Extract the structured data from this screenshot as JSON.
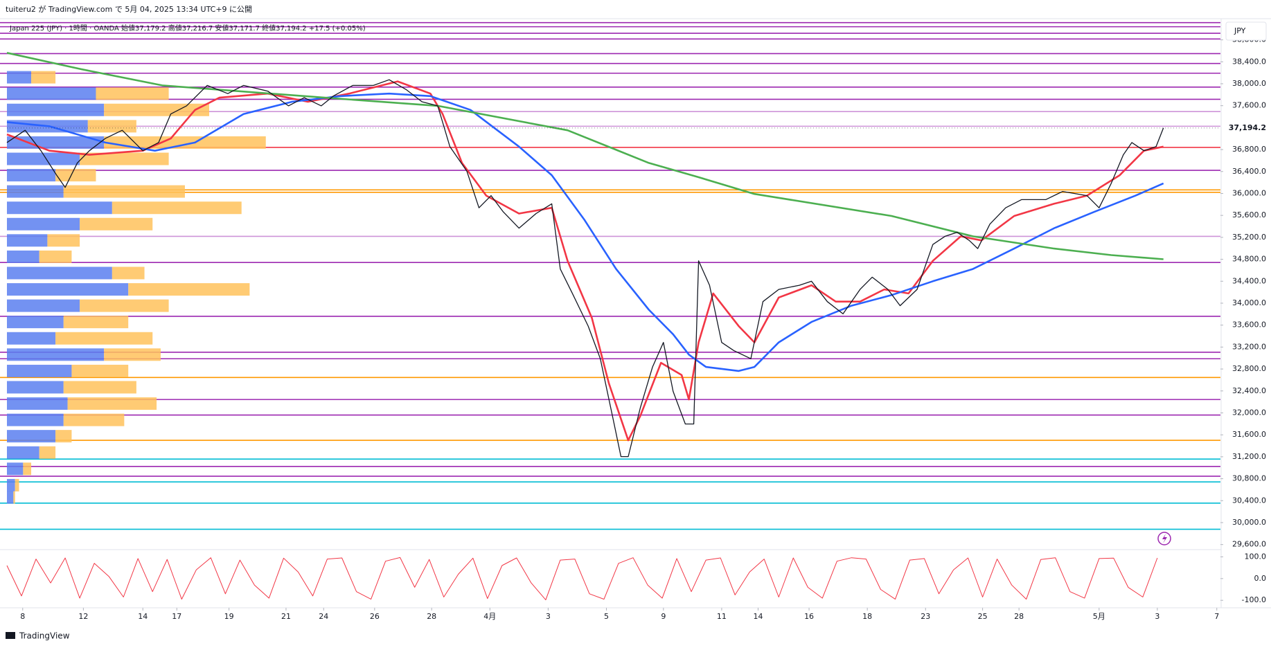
{
  "header": {
    "publisher": "tuiteru2 が TradingView.com で 5月 04, 2025 13:34 UTC+9 に公開",
    "legend": "Japan 225 (JPY) · 1時間 · OANDA  始値37,179.2  高値37,216.7  安値37,171.7  終値37,194.2  +17.5 (+0.05%)"
  },
  "footer": {
    "brand": "TradingView"
  },
  "chart_data": [
    {
      "type": "line",
      "currency": "JPY",
      "xlim": [
        0,
        1000
      ],
      "ylim": [
        29520,
        39110
      ],
      "xticks": [
        {
          "value": 13,
          "label": "8"
        },
        {
          "value": 63,
          "label": "12"
        },
        {
          "value": 112,
          "label": "14"
        },
        {
          "value": 140,
          "label": "17"
        },
        {
          "value": 183,
          "label": "19"
        },
        {
          "value": 230,
          "label": "21"
        },
        {
          "value": 261,
          "label": "24"
        },
        {
          "value": 303,
          "label": "26"
        },
        {
          "value": 350,
          "label": "28"
        },
        {
          "value": 398,
          "label": "4月"
        },
        {
          "value": 446,
          "label": "3"
        },
        {
          "value": 494,
          "label": "5"
        },
        {
          "value": 541,
          "label": "9"
        },
        {
          "value": 589,
          "label": "11"
        },
        {
          "value": 619,
          "label": "14"
        },
        {
          "value": 661,
          "label": "16"
        },
        {
          "value": 709,
          "label": "18"
        },
        {
          "value": 757,
          "label": "23"
        },
        {
          "value": 804,
          "label": "25"
        },
        {
          "value": 834,
          "label": "28"
        },
        {
          "value": 900,
          "label": "5月"
        },
        {
          "value": 948,
          "label": "3"
        },
        {
          "value": 997,
          "label": "7"
        }
      ],
      "yticks": [
        {
          "value": 29600,
          "label": "29,600.0"
        },
        {
          "value": 30000,
          "label": "30,000.0"
        },
        {
          "value": 30400,
          "label": "30,400.0"
        },
        {
          "value": 30800,
          "label": "30,800.0"
        },
        {
          "value": 31200,
          "label": "31,200.0"
        },
        {
          "value": 31600,
          "label": "31,600.0"
        },
        {
          "value": 32000,
          "label": "32,000.0"
        },
        {
          "value": 32400,
          "label": "32,400.0"
        },
        {
          "value": 32800,
          "label": "32,800.0"
        },
        {
          "value": 33200,
          "label": "33,200.0"
        },
        {
          "value": 33600,
          "label": "33,600.0"
        },
        {
          "value": 34000,
          "label": "34,000.0"
        },
        {
          "value": 34400,
          "label": "34,400.0"
        },
        {
          "value": 34800,
          "label": "34,800.0"
        },
        {
          "value": 35200,
          "label": "35,200.0"
        },
        {
          "value": 35600,
          "label": "35,600.0"
        },
        {
          "value": 36000,
          "label": "36,000.0"
        },
        {
          "value": 36400,
          "label": "36,400.0"
        },
        {
          "value": 36800,
          "label": "36,800.0"
        },
        {
          "value": 37600,
          "label": "37,600.0"
        },
        {
          "value": 38000,
          "label": "38,000.0"
        },
        {
          "value": 38400,
          "label": "38,400.0"
        },
        {
          "value": 38800,
          "label": "38,800.0"
        }
      ],
      "last_price": {
        "value": 37194.2,
        "label": "37,194.2"
      },
      "hlines": {
        "values": [
          39114,
          39039,
          38920,
          38816,
          38549,
          38370,
          38192,
          37939,
          37716,
          37493,
          37225,
          36839,
          36422,
          36065,
          36021,
          35218,
          34742,
          33761,
          33106,
          32987,
          32645,
          32244,
          31961,
          31500,
          31158,
          31024,
          30846,
          30742,
          30355,
          29879
        ],
        "colors": [
          "#9c27b0",
          "#9c27b0",
          "#9c27b0",
          "#9c27b0",
          "#9c27b0",
          "#9c27b0",
          "#9c27b0",
          "#9c27b0",
          "#9c27b0",
          "#ce93d8",
          "#ce93d8",
          "#f23645",
          "#9c27b0",
          "#ff9800",
          "#ff9800",
          "#ce93d8",
          "#9c27b0",
          "#9c27b0",
          "#9c27b0",
          "#9c27b0",
          "#ff9800",
          "#9c27b0",
          "#9c27b0",
          "#ff9800",
          "#00bcd4",
          "#9c27b0",
          "#9c27b0",
          "#00bcd4",
          "#00bcd4",
          "#00bcd4"
        ]
      },
      "volume_profile": {
        "xlim": [
          0,
          1500
        ],
        "colors": [
          "#5b7ff0",
          "#ffc25c"
        ],
        "levels": [
          38118,
          37820,
          37523,
          37225,
          36928,
          36630,
          36333,
          36036,
          35738,
          35441,
          35144,
          34846,
          34549,
          34251,
          33954,
          33657,
          33359,
          33062,
          32764,
          32467,
          32170,
          31872,
          31575,
          31277,
          30980,
          30682,
          30459
        ],
        "up": [
          30,
          110,
          120,
          100,
          120,
          90,
          60,
          70,
          130,
          90,
          50,
          40,
          130,
          150,
          90,
          70,
          60,
          120,
          80,
          70,
          75,
          70,
          60,
          40,
          20,
          10,
          8
        ],
        "down": [
          30,
          90,
          130,
          60,
          200,
          110,
          50,
          150,
          160,
          90,
          40,
          40,
          40,
          150,
          110,
          80,
          120,
          70,
          70,
          90,
          110,
          75,
          20,
          20,
          10,
          5,
          2
        ]
      },
      "series": [
        {
          "color": "#131722",
          "x": [
            0,
            15,
            28,
            41,
            48,
            58,
            68,
            81,
            95,
            112,
            125,
            135,
            148,
            165,
            182,
            195,
            215,
            232,
            245,
            259,
            269,
            285,
            302,
            315,
            329,
            342,
            355,
            365,
            379,
            389,
            399,
            409,
            422,
            436,
            449,
            456,
            466,
            479,
            489,
            499,
            506,
            512,
            522,
            532,
            541,
            549,
            559,
            566,
            570,
            579,
            589,
            599,
            613,
            623,
            636,
            653,
            663,
            676,
            689,
            703,
            713,
            726,
            736,
            750,
            763,
            773,
            783,
            793,
            800,
            810,
            823,
            836,
            856,
            870,
            890,
            900,
            910,
            920,
            927,
            937,
            947,
            953
          ],
          "values": [
            36928,
            37151,
            36779,
            36333,
            36110,
            36556,
            36779,
            37002,
            37151,
            36779,
            36928,
            37448,
            37597,
            37969,
            37820,
            37969,
            37865,
            37597,
            37746,
            37597,
            37776,
            37969,
            37969,
            38073,
            37894,
            37671,
            37597,
            36854,
            36407,
            35738,
            35961,
            35664,
            35367,
            35634,
            35812,
            34623,
            34177,
            33582,
            32987,
            31946,
            31203,
            31203,
            32095,
            32838,
            33284,
            32392,
            31797,
            31797,
            34772,
            34326,
            33284,
            33136,
            32987,
            34028,
            34251,
            34326,
            34400,
            34028,
            33805,
            34251,
            34474,
            34251,
            33954,
            34251,
            35069,
            35218,
            35292,
            35144,
            34995,
            35441,
            35738,
            35887,
            35887,
            36036,
            35961,
            35738,
            36184,
            36705,
            36928,
            36779,
            36854,
            37194.2
          ]
        },
        {
          "color": "#f23645",
          "x": [
            0,
            35,
            68,
            112,
            135,
            155,
            175,
            215,
            248,
            282,
            322,
            349,
            359,
            375,
            395,
            422,
            449,
            462,
            482,
            496,
            512,
            522,
            539,
            556,
            562,
            570,
            582,
            603,
            616,
            636,
            663,
            683,
            703,
            723,
            743,
            763,
            786,
            803,
            830,
            863,
            890,
            917,
            937,
            953
          ],
          "values": [
            37077,
            36779,
            36705,
            36779,
            37002,
            37523,
            37746,
            37820,
            37671,
            37820,
            38043,
            37820,
            37448,
            36556,
            35961,
            35634,
            35738,
            34772,
            33731,
            32541,
            31500,
            31946,
            32913,
            32690,
            32244,
            33285,
            34177,
            33582,
            33285,
            34103,
            34326,
            34028,
            34028,
            34251,
            34177,
            34772,
            35218,
            35144,
            35590,
            35813,
            35961,
            36333,
            36779,
            36854
          ]
        },
        {
          "color": "#2962ff",
          "x": [
            0,
            35,
            81,
            122,
            155,
            195,
            235,
            275,
            315,
            349,
            382,
            422,
            449,
            476,
            502,
            529,
            549,
            562,
            576,
            603,
            616,
            636,
            663,
            696,
            729,
            763,
            796,
            830,
            863,
            896,
            930,
            953
          ],
          "values": [
            37300,
            37225,
            36928,
            36779,
            36928,
            37448,
            37671,
            37775,
            37820,
            37775,
            37523,
            36854,
            36333,
            35515,
            34623,
            33880,
            33433,
            33062,
            32838,
            32764,
            32838,
            33285,
            33657,
            33954,
            34147,
            34400,
            34623,
            34995,
            35367,
            35664,
            35961,
            36184
          ]
        },
        {
          "color": "#4caf50",
          "x": [
            0,
            61,
            128,
            262,
            355,
            462,
            529,
            569,
            616,
            729,
            796,
            863,
            910,
            953
          ],
          "values": [
            38564,
            38266,
            37969,
            37746,
            37597,
            37151,
            36556,
            36303,
            35991,
            35590,
            35218,
            34995,
            34876,
            34801
          ]
        }
      ]
    },
    {
      "type": "line",
      "xlim": [
        0,
        1000
      ],
      "ylim": [
        -128,
        130
      ],
      "yticks": [
        {
          "value": 100,
          "label": "100.0"
        },
        {
          "value": 0,
          "label": "0.0"
        },
        {
          "value": -100,
          "label": "-100.0"
        }
      ],
      "series": [
        {
          "color": "#f23645",
          "x": [
            0,
            12,
            24,
            36,
            48,
            60,
            72,
            84,
            96,
            108,
            120,
            132,
            144,
            156,
            168,
            180,
            192,
            204,
            216,
            228,
            240,
            252,
            264,
            276,
            288,
            300,
            312,
            324,
            336,
            348,
            360,
            372,
            384,
            396,
            408,
            420,
            432,
            444,
            456,
            468,
            480,
            492,
            504,
            516,
            528,
            540,
            552,
            564,
            576,
            588,
            600,
            612,
            624,
            636,
            648,
            660,
            672,
            684,
            696,
            708,
            720,
            732,
            744,
            756,
            768,
            780,
            792,
            804,
            816,
            828,
            840,
            852,
            864,
            876,
            888,
            900,
            912,
            924,
            936,
            948
          ],
          "values": [
            60,
            -80,
            90,
            -20,
            95,
            -90,
            70,
            10,
            -85,
            92,
            -60,
            88,
            -95,
            40,
            96,
            -70,
            85,
            -30,
            -90,
            94,
            30,
            -80,
            90,
            95,
            -60,
            -95,
            80,
            97,
            -40,
            88,
            -85,
            20,
            94,
            -92,
            60,
            95,
            -20,
            -98,
            85,
            90,
            -70,
            -95,
            70,
            96,
            -30,
            -90,
            92,
            -60,
            85,
            95,
            -75,
            30,
            90,
            -85,
            95,
            -40,
            -90,
            80,
            96,
            90,
            -50,
            -95,
            85,
            92,
            -70,
            40,
            95,
            -85,
            90,
            -30,
            -95,
            88,
            96,
            -60,
            -90,
            92,
            94,
            -40,
            -85,
            95
          ]
        }
      ]
    }
  ]
}
